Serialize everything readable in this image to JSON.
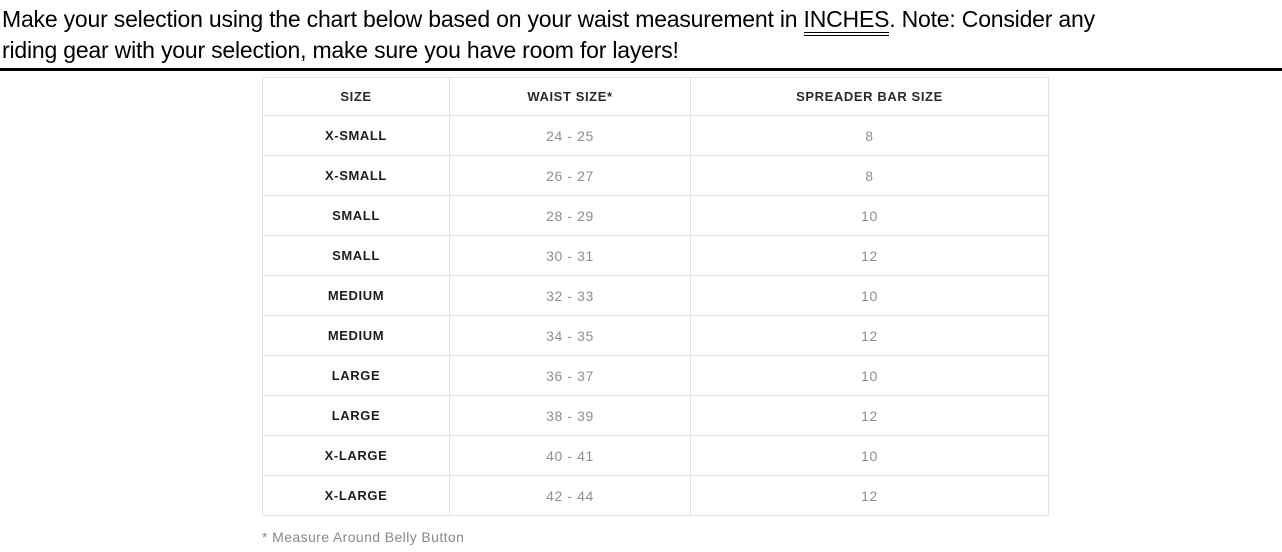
{
  "intro": {
    "line1_before": "Make your selection using the chart below based on your waist measurement in ",
    "line1_emphasis": "INCHES",
    "line1_after": ". Note: Consider any",
    "line2": "riding gear with your selection, make sure you have room for layers!"
  },
  "table": {
    "columns": [
      "SIZE",
      "WAIST SIZE*",
      "SPREADER BAR SIZE"
    ],
    "rows": [
      {
        "size": "X-SMALL",
        "waist": "24 - 25",
        "bar": "8"
      },
      {
        "size": "X-SMALL",
        "waist": "26 - 27",
        "bar": "8"
      },
      {
        "size": "SMALL",
        "waist": "28 - 29",
        "bar": "10"
      },
      {
        "size": "SMALL",
        "waist": "30 - 31",
        "bar": "12"
      },
      {
        "size": "MEDIUM",
        "waist": "32 - 33",
        "bar": "10"
      },
      {
        "size": "MEDIUM",
        "waist": "34 - 35",
        "bar": "12"
      },
      {
        "size": "LARGE",
        "waist": "36 - 37",
        "bar": "10"
      },
      {
        "size": "LARGE",
        "waist": "38 - 39",
        "bar": "12"
      },
      {
        "size": "X-LARGE",
        "waist": "40 - 41",
        "bar": "10"
      },
      {
        "size": "X-LARGE",
        "waist": "42 - 44",
        "bar": "12"
      }
    ]
  },
  "footnote": "* Measure Around Belly Button",
  "colors": {
    "divider": "#000000",
    "table_border": "#e4e4e4",
    "header_text": "#2b2b2b",
    "size_text": "#1d1d1d",
    "value_text": "#8f8f8f",
    "footnote_text": "#8a8a8a"
  }
}
